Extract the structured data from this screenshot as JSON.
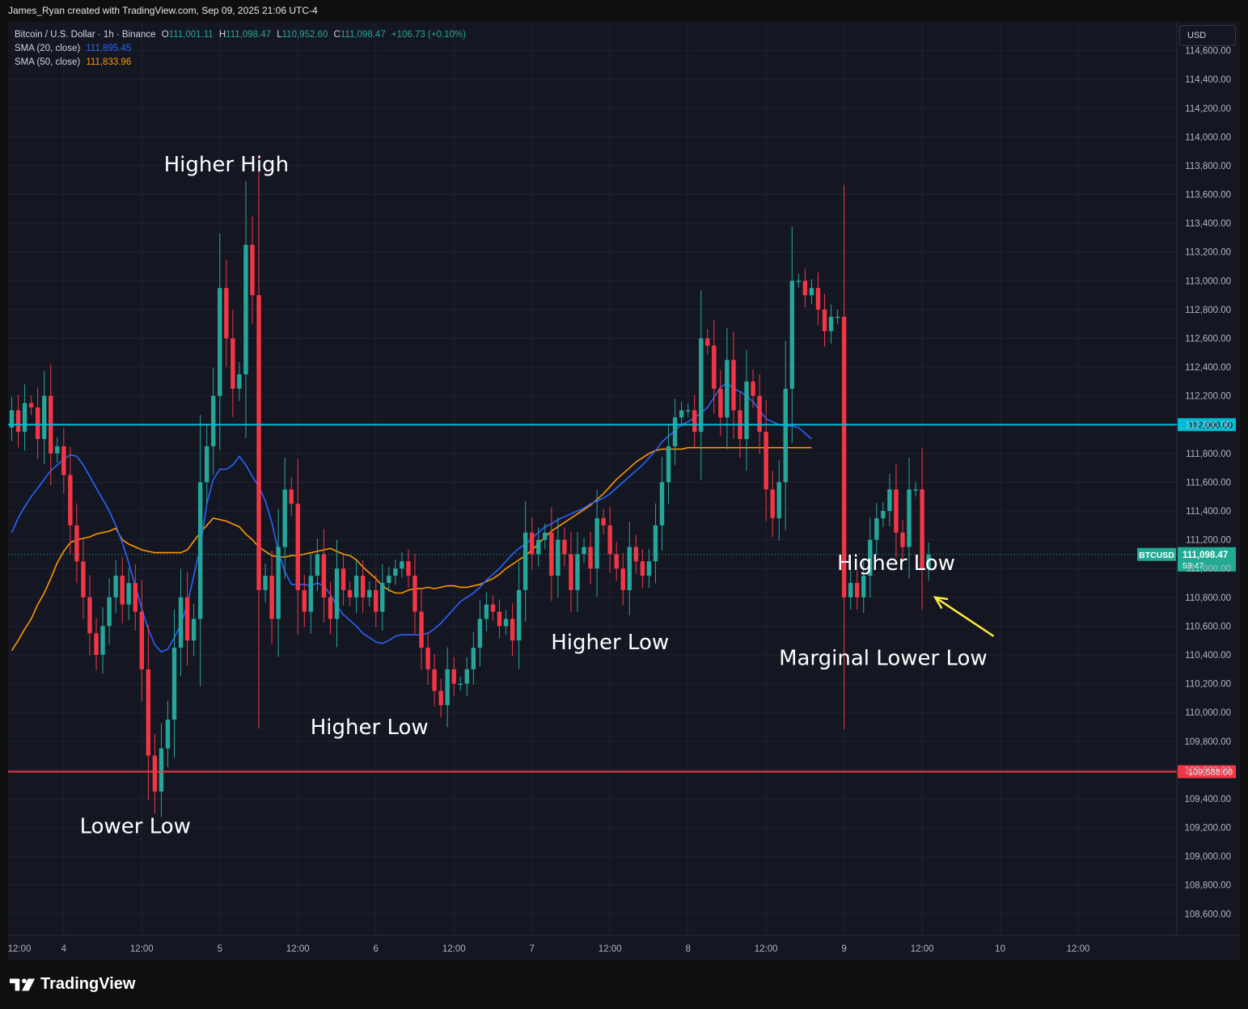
{
  "header": {
    "credit": "James_Ryan created with TradingView.com, Sep 09, 2025 21:06 UTC-4"
  },
  "legend": {
    "symbol": "Bitcoin / U.S. Dollar · 1h · Binance",
    "ohlc": [
      {
        "key": "O",
        "value": "111,001.11"
      },
      {
        "key": "H",
        "value": "111,098.47"
      },
      {
        "key": "L",
        "value": "110,952.60"
      },
      {
        "key": "C",
        "value": "111,098.47"
      }
    ],
    "change": "+106.73 (+0.10%)",
    "sma20_label": "SMA (20, close)",
    "sma20_value": "111,895.45",
    "sma50_label": "SMA (50, close)",
    "sma50_value": "111,833.96"
  },
  "currency": "USD",
  "footer": {
    "logo_text": "TradingView"
  },
  "colors": {
    "background": "#141722",
    "grid": "#1f2330",
    "up": "#26a69a",
    "down": "#f23645",
    "sma20": "#2962ff",
    "sma50": "#ff9800",
    "resistance": "#00bcd4",
    "support": "#f23645",
    "arrow": "#ffeb3b",
    "annotation": "#ffffff"
  },
  "chart_data": {
    "type": "candlestick",
    "symbol_tag": "BTCUSD",
    "price_label": "111,098.47",
    "countdown": "53:47",
    "y_range": [
      108450,
      114800
    ],
    "y_ticks": [
      108600,
      108800,
      109000,
      109200,
      109400,
      109600,
      109800,
      110000,
      110200,
      110400,
      110600,
      110800,
      111000,
      111200,
      111400,
      111600,
      111800,
      112000,
      112200,
      112400,
      112600,
      112800,
      113000,
      113200,
      113400,
      113600,
      113800,
      114000,
      114200,
      114400,
      114600
    ],
    "x_labels": [
      {
        "i": -4,
        "label": "12:00"
      },
      {
        "i": 8,
        "label": "4"
      },
      {
        "i": 20,
        "label": "12:00"
      },
      {
        "i": 32,
        "label": "5"
      },
      {
        "i": 44,
        "label": "12:00"
      },
      {
        "i": 56,
        "label": "6"
      },
      {
        "i": 68,
        "label": "12:00"
      },
      {
        "i": 80,
        "label": "7"
      },
      {
        "i": 92,
        "label": "12:00"
      },
      {
        "i": 104,
        "label": "8"
      },
      {
        "i": 116,
        "label": "12:00"
      },
      {
        "i": 128,
        "label": "9"
      },
      {
        "i": 140,
        "label": "12:00"
      },
      {
        "i": 152,
        "label": "10"
      },
      {
        "i": 164,
        "label": "12:00"
      }
    ],
    "closes": [
      112100,
      111950,
      112150,
      112120,
      111900,
      112200,
      111800,
      111850,
      111650,
      111300,
      111050,
      110800,
      110550,
      110400,
      110600,
      110800,
      110950,
      110750,
      110900,
      110700,
      110300,
      109700,
      109450,
      109750,
      109950,
      110450,
      110800,
      110500,
      110650,
      111600,
      111850,
      112200,
      112950,
      112600,
      112250,
      112350,
      113250,
      112900,
      110850,
      110950,
      110650,
      111150,
      111550,
      111450,
      110850,
      110700,
      110950,
      111100,
      110800,
      110650,
      111000,
      110850,
      110800,
      110950,
      110800,
      110850,
      110700,
      110900,
      110950,
      111000,
      111050,
      110950,
      110700,
      110450,
      110300,
      110150,
      110050,
      110300,
      110200,
      110200,
      110300,
      110450,
      110650,
      110750,
      110700,
      110600,
      110650,
      110500,
      110850,
      111250,
      111100,
      111200,
      111250,
      110950,
      111200,
      111100,
      110850,
      111100,
      111150,
      111000,
      111350,
      111300,
      111100,
      111000,
      110850,
      111150,
      111050,
      110950,
      111050,
      111300,
      111600,
      111850,
      112050,
      112100,
      112100,
      111950,
      112600,
      112550,
      112250,
      112050,
      112450,
      112100,
      111900,
      112300,
      112200,
      111950,
      111550,
      111350,
      111600,
      112250,
      113000,
      113000,
      112900,
      112950,
      112800,
      112650,
      112750,
      112750,
      110800,
      110900,
      110800,
      110950,
      111200,
      111350,
      111400,
      111550,
      111250,
      111150,
      111550,
      111550,
      111000,
      111098
    ],
    "sma20": [
      111250,
      111350,
      111430,
      111500,
      111560,
      111620,
      111680,
      111720,
      111760,
      111790,
      111780,
      111720,
      111640,
      111560,
      111480,
      111400,
      111300,
      111180,
      111040,
      110880,
      110720,
      110580,
      110470,
      110420,
      110440,
      110520,
      110610,
      110750,
      110950,
      111150,
      111450,
      111620,
      111690,
      111690,
      111720,
      111780,
      111720,
      111640,
      111570,
      111470,
      111320,
      111120,
      110980,
      110890,
      110890,
      110890,
      110880,
      110900,
      110880,
      110820,
      110740,
      110680,
      110640,
      110600,
      110550,
      110520,
      110490,
      110480,
      110500,
      110530,
      110540,
      110540,
      110540,
      110540,
      110550,
      110580,
      110620,
      110670,
      110720,
      110770,
      110800,
      110830,
      110870,
      110920,
      110960,
      111000,
      111050,
      111100,
      111140,
      111170,
      111210,
      111250,
      111290,
      111310,
      111340,
      111360,
      111380,
      111400,
      111420,
      111450,
      111470,
      111490,
      111520,
      111560,
      111600,
      111640,
      111680,
      111720,
      111770,
      111820,
      111880,
      111920,
      111960,
      112000,
      112020,
      112050,
      112080,
      112120,
      112190,
      112260,
      112290,
      112250,
      112230,
      112200,
      112160,
      112100,
      112040,
      112020,
      112000,
      111990,
      111990,
      111980,
      111940,
      111900
    ],
    "sma50": [
      110430,
      110500,
      110580,
      110650,
      110750,
      110830,
      110930,
      111040,
      111120,
      111180,
      111200,
      111210,
      111220,
      111240,
      111250,
      111260,
      111280,
      111200,
      111170,
      111150,
      111130,
      111120,
      111110,
      111110,
      111110,
      111110,
      111110,
      111130,
      111190,
      111250,
      111300,
      111350,
      111340,
      111330,
      111310,
      111290,
      111240,
      111200,
      111150,
      111120,
      111090,
      111080,
      111080,
      111090,
      111090,
      111100,
      111110,
      111120,
      111130,
      111140,
      111120,
      111100,
      111090,
      111060,
      111010,
      110970,
      110930,
      110880,
      110850,
      110830,
      110830,
      110850,
      110860,
      110860,
      110870,
      110860,
      110870,
      110880,
      110880,
      110870,
      110870,
      110880,
      110890,
      110910,
      110930,
      110960,
      111000,
      111030,
      111060,
      111090,
      111130,
      111170,
      111220,
      111260,
      111290,
      111320,
      111350,
      111380,
      111410,
      111440,
      111480,
      111520,
      111570,
      111620,
      111660,
      111700,
      111740,
      111770,
      111800,
      111820,
      111830,
      111830,
      111830,
      111830,
      111840,
      111840,
      111840,
      111840,
      111840,
      111840,
      111840,
      111840,
      111840,
      111840,
      111840,
      111840,
      111840,
      111840,
      111840,
      111840,
      111840,
      111840,
      111840,
      111840
    ],
    "horizontal_lines": [
      {
        "price": 112000,
        "label": "112,000.00",
        "kind": "resistance"
      },
      {
        "price": 109588,
        "label": "109,588.00",
        "kind": "support"
      }
    ],
    "annotations": [
      {
        "text": "Higher High",
        "i": 33,
        "price": 113760
      },
      {
        "text": "Lower Low",
        "i": 19,
        "price": 109160
      },
      {
        "text": "Higher Low",
        "i": 55,
        "price": 109850
      },
      {
        "text": "Higher Low",
        "i": 92,
        "price": 110440
      },
      {
        "text": "Higher Low",
        "i": 136,
        "price": 110990
      },
      {
        "text": "Marginal Lower Low",
        "i": 134,
        "price": 110330
      }
    ],
    "arrow": {
      "from": {
        "i": 151,
        "price": 110530
      },
      "to": {
        "i": 142,
        "price": 110800
      }
    }
  }
}
